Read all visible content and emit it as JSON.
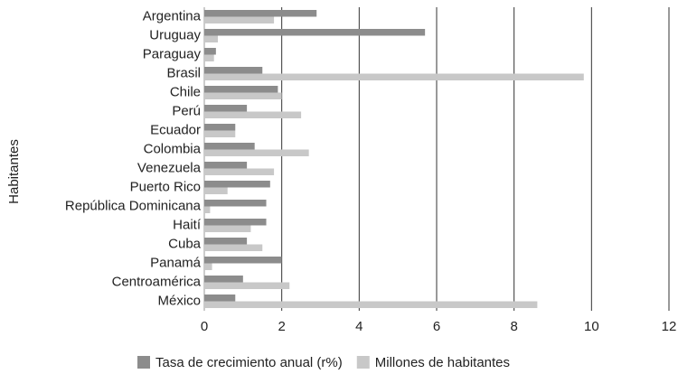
{
  "chart_data": {
    "type": "barh",
    "y_label": "Habitantes",
    "categories": [
      "Argentina",
      "Uruguay",
      "Paraguay",
      "Brasil",
      "Chile",
      "Perú",
      "Ecuador",
      "Colombia",
      "Venezuela",
      "Puerto Rico",
      "República Dominicana",
      "Haití",
      "Cuba",
      "Panamá",
      "Centroamérica",
      "México"
    ],
    "series": [
      {
        "name": "Tasa de crecimiento anual (r%)",
        "color": "#8c8c8c",
        "values": [
          2.9,
          5.7,
          0.3,
          1.5,
          1.9,
          1.1,
          0.8,
          1.3,
          1.1,
          1.7,
          1.6,
          1.6,
          1.1,
          2.0,
          1.0,
          0.8
        ]
      },
      {
        "name": "Millones de habitantes",
        "color": "#c8c8c8",
        "values": [
          1.8,
          0.35,
          0.25,
          9.8,
          2.0,
          2.5,
          0.8,
          2.7,
          1.8,
          0.6,
          0.15,
          1.2,
          1.5,
          0.2,
          2.2,
          8.6
        ]
      }
    ],
    "xlim": [
      0,
      12
    ],
    "xticks": [
      0,
      2,
      4,
      6,
      8,
      10,
      12
    ],
    "grid": true,
    "legend": "bottom"
  }
}
